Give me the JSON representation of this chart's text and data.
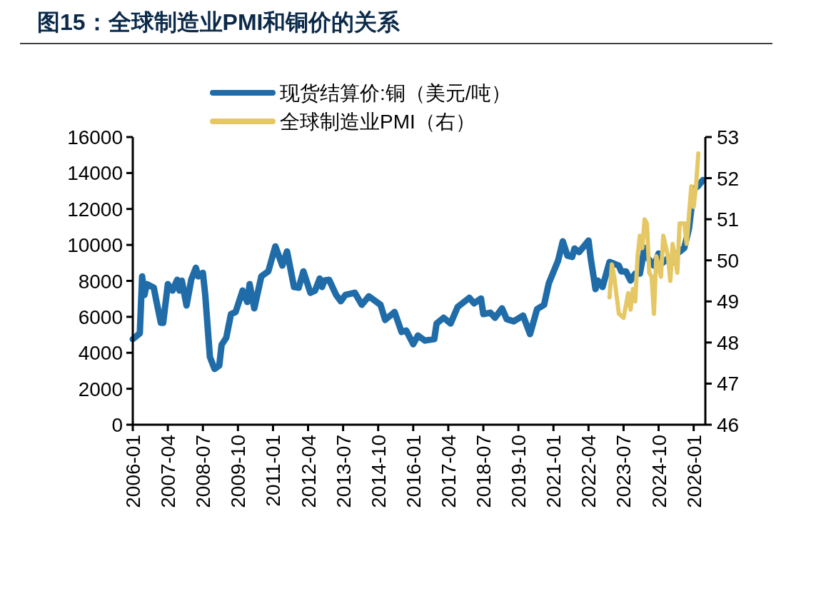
{
  "chart_data": {
    "type": "line",
    "title": "图15：全球制造业PMI和铜价的关系",
    "xlim": [
      "2006-01",
      "2026-06"
    ],
    "xticks": [
      "2006-01",
      "2007-04",
      "2008-07",
      "2009-10",
      "2011-01",
      "2012-04",
      "2013-07",
      "2014-10",
      "2016-01",
      "2017-04",
      "2018-07",
      "2019-10",
      "2021-01",
      "2022-04",
      "2023-07",
      "2024-10",
      "2026-01"
    ],
    "ylim": [
      0,
      16000
    ],
    "yticks": [
      0,
      2000,
      4000,
      6000,
      8000,
      10000,
      12000,
      14000,
      16000
    ],
    "y2lim": [
      46,
      53
    ],
    "y2ticks": [
      46,
      47,
      48,
      49,
      50,
      51,
      52,
      53
    ],
    "legend": "top",
    "grid": false,
    "series": [
      {
        "name": "现货结算价:铜（美元/吨）",
        "color": "#1f6ca8",
        "x": [
          "2006-01",
          "2006-04",
          "2006-05",
          "2006-06",
          "2006-07",
          "2006-10",
          "2006-11",
          "2007-01",
          "2007-02",
          "2007-04",
          "2007-06",
          "2007-08",
          "2007-09",
          "2007-10",
          "2007-12",
          "2008-01",
          "2008-02",
          "2008-04",
          "2008-05",
          "2008-07",
          "2008-08",
          "2008-10",
          "2008-12",
          "2009-02",
          "2009-03",
          "2009-05",
          "2009-07",
          "2009-09",
          "2009-12",
          "2010-02",
          "2010-03",
          "2010-05",
          "2010-08",
          "2010-11",
          "2011-02",
          "2011-05",
          "2011-07",
          "2011-10",
          "2011-12",
          "2012-02",
          "2012-05",
          "2012-07",
          "2012-09",
          "2012-10",
          "2012-11",
          "2013-01",
          "2013-04",
          "2013-06",
          "2013-08",
          "2013-12",
          "2014-03",
          "2014-06",
          "2014-11",
          "2015-01",
          "2015-05",
          "2015-08",
          "2015-10",
          "2016-01",
          "2016-03",
          "2016-06",
          "2016-10",
          "2016-11",
          "2017-02",
          "2017-05",
          "2017-08",
          "2018-01",
          "2018-03",
          "2018-06",
          "2018-07",
          "2018-10",
          "2018-12",
          "2019-03",
          "2019-05",
          "2019-08",
          "2019-12",
          "2020-03",
          "2020-06",
          "2020-09",
          "2020-11",
          "2021-03",
          "2021-05",
          "2021-07",
          "2021-09",
          "2021-10",
          "2021-12",
          "2022-04",
          "2022-05",
          "2022-07",
          "2022-08",
          "2022-10",
          "2023-01",
          "2023-05",
          "2023-06",
          "2023-08",
          "2023-10",
          "2023-12",
          "2024-02",
          "2024-04",
          "2024-05",
          "2024-08",
          "2024-10",
          "2024-11",
          "2025-02",
          "2025-04",
          "2025-06",
          "2025-09",
          "2025-11",
          "2026-01",
          "2026-03",
          "2026-05"
        ],
        "values": [
          4760,
          5080,
          8250,
          7220,
          7820,
          7620,
          6940,
          5670,
          5670,
          7820,
          7460,
          8060,
          7460,
          8010,
          6630,
          7340,
          8060,
          8730,
          8250,
          8450,
          7220,
          3770,
          3100,
          3290,
          4440,
          4840,
          6150,
          6270,
          7460,
          6830,
          7820,
          6470,
          8250,
          8530,
          9920,
          8850,
          9640,
          7660,
          7620,
          8530,
          7340,
          7460,
          8130,
          7660,
          8020,
          8060,
          7220,
          6870,
          7220,
          7340,
          6670,
          7140,
          6670,
          5830,
          6270,
          5160,
          5240,
          4480,
          4960,
          4680,
          4760,
          5630,
          5950,
          5630,
          6550,
          7060,
          6750,
          7020,
          6150,
          6230,
          5950,
          6470,
          5870,
          5750,
          6070,
          5040,
          6430,
          6670,
          7860,
          9130,
          10200,
          9400,
          9330,
          9800,
          9600,
          10240,
          9210,
          7540,
          8020,
          7660,
          9050,
          8850,
          8530,
          8530,
          8020,
          8410,
          8410,
          9840,
          9330,
          8850,
          9520,
          8930,
          9250,
          9050,
          9520,
          9840,
          10910,
          13100,
          13290,
          13610
        ]
      },
      {
        "name": "全球制造业PMI（右）",
        "color": "#e5c865",
        "axis": "y2",
        "x": [
          "2023-01",
          "2023-02",
          "2023-03",
          "2023-05",
          "2023-07",
          "2023-09",
          "2023-10",
          "2023-11",
          "2023-12",
          "2024-01",
          "2024-02",
          "2024-03",
          "2024-04",
          "2024-05",
          "2024-06",
          "2024-07",
          "2024-08",
          "2024-09",
          "2024-11",
          "2024-12",
          "2025-02",
          "2025-03",
          "2025-04",
          "2025-06",
          "2025-07",
          "2025-09",
          "2025-10",
          "2025-12",
          "2026-01",
          "2026-02",
          "2026-03"
        ],
        "values": [
          49.1,
          49.9,
          49.6,
          48.7,
          48.6,
          49.2,
          48.8,
          49.3,
          49.0,
          50.1,
          50.6,
          50.3,
          51.0,
          50.9,
          49.7,
          49.6,
          48.7,
          50.1,
          49.6,
          50.6,
          50.1,
          49.5,
          50.4,
          49.7,
          50.9,
          50.9,
          50.4,
          51.8,
          51.3,
          51.8,
          52.6
        ]
      }
    ]
  }
}
